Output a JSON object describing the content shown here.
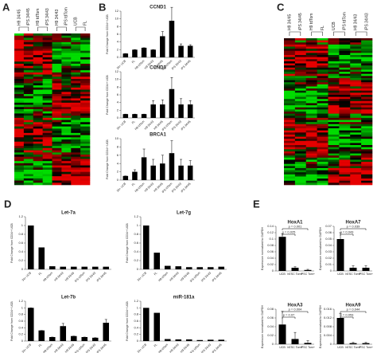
{
  "panels": [
    "A",
    "B",
    "C",
    "D",
    "E"
  ],
  "chart_data": [
    {
      "type": "heatmap",
      "columns": [
        "H9 34/45",
        "iPS 34/45",
        "H9 tdTom",
        "iPS 34/43",
        "H9 34/43",
        "iPS tdTom",
        "UCB",
        "FL"
      ]
    },
    {
      "type": "bar",
      "title": "CCND1",
      "ylabel": "Fold Change from CD34+ UCB",
      "color": "#000000",
      "categories": [
        "34+ UCB",
        "FL",
        "H9 tdTom",
        "H9 34/43",
        "H9 34/45",
        "iPS tdTom",
        "iPS 34/43",
        "iPS 34/45"
      ],
      "values": [
        1,
        2,
        2.5,
        2,
        5.5,
        9.5,
        3,
        3
      ],
      "errors": [
        0,
        0,
        0,
        0,
        1.2,
        3.5,
        0.5,
        0.3
      ],
      "ylim": [
        0,
        12
      ],
      "yticks": [
        0,
        2,
        4,
        6,
        8,
        10,
        12
      ]
    },
    {
      "type": "bar",
      "title": "CCND3",
      "ylabel": "Fold Change from CD34+ UCB",
      "color": "#000000",
      "categories": [
        "34+ UCB",
        "FL",
        "H9 tdTom",
        "H9 34/43",
        "H9 34/45",
        "iPS tdTom",
        "iPS 34/43",
        "iPS 34/45"
      ],
      "values": [
        1,
        1,
        1,
        3.5,
        3.5,
        7.5,
        3.5,
        3.5
      ],
      "errors": [
        0,
        0,
        0,
        1,
        1.2,
        3,
        1.5,
        1
      ],
      "ylim": [
        0,
        12
      ],
      "yticks": [
        0,
        2,
        4,
        6,
        8,
        10,
        12
      ]
    },
    {
      "type": "bar",
      "title": "BRCA1",
      "ylabel": "Fold Change from CD34+ UCB",
      "color": "#000000",
      "categories": [
        "34+ UCB",
        "FL",
        "H9 tdTom",
        "H9 34/43",
        "H9 34/45",
        "iPS tdTom",
        "iPS 34/43",
        "iPS 34/45"
      ],
      "values": [
        1,
        2,
        5.5,
        3.5,
        4,
        6.5,
        3.5,
        3.5
      ],
      "errors": [
        0,
        0.5,
        2,
        1.5,
        2,
        3,
        1.5,
        1.2
      ],
      "ylim": [
        0,
        10
      ],
      "yticks": [
        0,
        2,
        4,
        6,
        8,
        10
      ]
    },
    {
      "type": "heatmap",
      "columns": [
        "H9 34/45",
        "iPS 34/45",
        "H9 tdTom",
        "FL",
        "UCB",
        "iPS tdTom",
        "H9 34/43",
        "iPS 34/43"
      ]
    },
    {
      "type": "bar",
      "title": "Let-7a",
      "ylabel": "Fold Change from CD34+ UCB",
      "color": "#000000",
      "categories": [
        "34+ UCB",
        "FL",
        "H9 tdTom",
        "H9 34/43",
        "H9 34/45",
        "iPS tdTom",
        "iPS 34/43",
        "iPS 34/45"
      ],
      "values": [
        1,
        0.5,
        0.07,
        0.06,
        0.06,
        0.06,
        0.06,
        0.06
      ],
      "ylim": [
        0,
        1.2
      ],
      "yticks": [
        0,
        0.2,
        0.4,
        0.6,
        0.8,
        1,
        1.2
      ]
    },
    {
      "type": "bar",
      "title": "Let-7g",
      "ylabel": "Fold Change from CD34+ UCB",
      "color": "#000000",
      "categories": [
        "34+ UCB",
        "FL",
        "H9 tdTom",
        "H9 34/43",
        "H9 34/45",
        "iPS tdTom",
        "iPS 34/43",
        "iPS 34/45"
      ],
      "values": [
        1,
        0.38,
        0.08,
        0.07,
        0.05,
        0.05,
        0.05,
        0.06
      ],
      "ylim": [
        0,
        1.2
      ],
      "yticks": [
        0,
        0.2,
        0.4,
        0.6,
        0.8,
        1,
        1.2
      ]
    },
    {
      "type": "bar",
      "title": "Let-7b",
      "ylabel": "Fold Change from CD34+ UCB",
      "color": "#000000",
      "categories": [
        "34+ UCB",
        "FL",
        "H9 tdTom",
        "H9 34/43",
        "H9 34/45",
        "iPS tdTom",
        "iPS 34/43",
        "iPS 34/45"
      ],
      "values": [
        1,
        0.32,
        0.12,
        0.45,
        0.15,
        0.12,
        0.1,
        0.55
      ],
      "errors": [
        0,
        0,
        0,
        0.08,
        0,
        0,
        0,
        0.1
      ],
      "ylim": [
        0,
        1.2
      ],
      "yticks": [
        0,
        0.2,
        0.4,
        0.6,
        0.8,
        1,
        1.2
      ]
    },
    {
      "type": "bar",
      "title": "miR-181a",
      "ylabel": "Fold Change from CD34+ UCB",
      "color": "#000000",
      "categories": [
        "34+ UCB",
        "FL",
        "H9 tdTom",
        "H9 34/43",
        "H9 34/45",
        "iPS tdTom",
        "iPS 34/43",
        "iPS 34/45"
      ],
      "values": [
        1,
        0.85,
        0.06,
        0.05,
        0.05,
        0.03,
        0.04,
        0.04
      ],
      "ylim": [
        0,
        1.2
      ],
      "yticks": [
        0,
        0.2,
        0.4,
        0.6,
        0.8,
        1,
        1.2
      ]
    },
    {
      "type": "bar",
      "title": "HoxA1",
      "ylabel": "Expression normalized to GAPDH",
      "color": "#000000",
      "categories": [
        "UCB",
        "hESC Tom+",
        "iPSC Tom+"
      ],
      "values": [
        0.107,
        0.01,
        0.003
      ],
      "errors": [
        0.01,
        0.003,
        0.002
      ],
      "ylim": [
        0,
        0.14
      ],
      "yticks": [
        0,
        0.02,
        0.04,
        0.06,
        0.08,
        0.1,
        0.12,
        0.14
      ],
      "annotations": [
        "p = 0.025",
        "p = 0.001"
      ]
    },
    {
      "type": "bar",
      "title": "HoxA7",
      "ylabel": "Expression normalized to GAPDH",
      "color": "#000000",
      "categories": [
        "UCB",
        "hESC Tom+",
        "iPSC Tom+"
      ],
      "values": [
        0.05,
        0.005,
        0.005
      ],
      "errors": [
        0.01,
        0.003,
        0.003
      ],
      "ylim": [
        0,
        0.07
      ],
      "yticks": [
        0,
        0.01,
        0.02,
        0.03,
        0.04,
        0.05,
        0.06,
        0.07
      ],
      "annotations": [
        "p = 0.043",
        "p = 0.039"
      ]
    },
    {
      "type": "bar",
      "title": "HoxA3",
      "ylabel": "Expression normalized to GAPDH",
      "color": "#000000",
      "categories": [
        "UCB",
        "hESC Tom+",
        "iPSC Tom+"
      ],
      "values": [
        0.045,
        0.012,
        0.003
      ],
      "errors": [
        0.03,
        0.015,
        0.005
      ],
      "ylim": [
        0,
        0.08
      ],
      "yticks": [
        0,
        0.02,
        0.04,
        0.06,
        0.08
      ],
      "annotations": [
        "p = 0.07",
        "p = 0.004"
      ]
    },
    {
      "type": "bar",
      "title": "HoxA9",
      "ylabel": "Expression normalized to GAPDH",
      "color": "#000000",
      "categories": [
        "UCB",
        "hESC Tom+",
        "iPSC Tom+"
      ],
      "values": [
        0.012,
        0.0005,
        0.0005
      ],
      "errors": [
        0.002,
        0.0003,
        0.0003
      ],
      "ylim": [
        0,
        0.016
      ],
      "yticks": [
        0,
        0.004,
        0.008,
        0.012,
        0.016
      ],
      "annotations": [
        "p = 0.053",
        "p = 0.044"
      ]
    }
  ]
}
